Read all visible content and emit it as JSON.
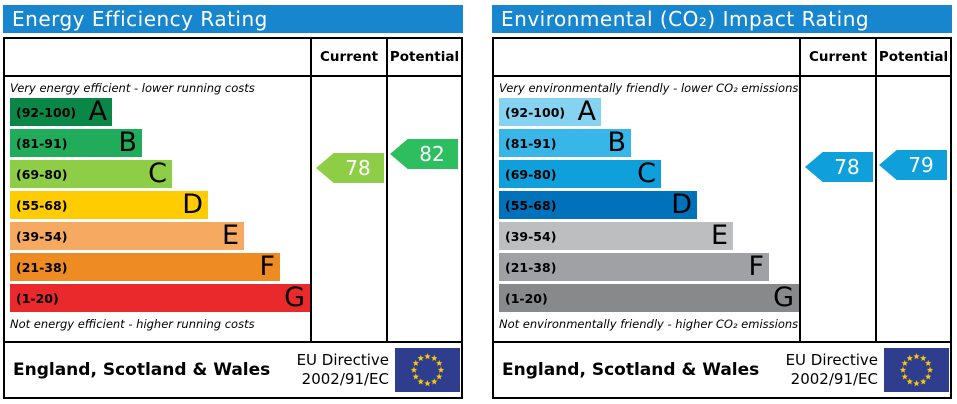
{
  "charts": [
    {
      "title": "Energy Efficiency Rating",
      "header": {
        "current": "Current",
        "potential": "Potential"
      },
      "top_caption": "Very energy efficient - lower running costs",
      "bottom_caption": "Not energy efficient - higher running costs",
      "bands": [
        {
          "label": "(92-100)",
          "letter": "A",
          "color": "#0a8647",
          "width_pct": 34
        },
        {
          "label": "(81-91)",
          "letter": "B",
          "color": "#20ac5b",
          "width_pct": 44
        },
        {
          "label": "(69-80)",
          "letter": "C",
          "color": "#8dce46",
          "width_pct": 54
        },
        {
          "label": "(55-68)",
          "letter": "D",
          "color": "#ffcc00",
          "width_pct": 66
        },
        {
          "label": "(39-54)",
          "letter": "E",
          "color": "#f6a961",
          "width_pct": 78
        },
        {
          "label": "(21-38)",
          "letter": "F",
          "color": "#ee8b22",
          "width_pct": 90
        },
        {
          "label": "(1-20)",
          "letter": "G",
          "color": "#e9292c",
          "width_pct": 100
        }
      ],
      "current": {
        "value": "78",
        "color": "#8dce46"
      },
      "potential": {
        "value": "82",
        "color": "#2dbe60"
      },
      "footer": {
        "region": "England, Scotland & Wales",
        "directive_line1": "EU Directive",
        "directive_line2": "2002/91/EC"
      }
    },
    {
      "title": "Environmental (CO₂) Impact Rating",
      "header": {
        "current": "Current",
        "potential": "Potential"
      },
      "top_caption": "Very environmentally friendly - lower CO₂ emissions",
      "bottom_caption": "Not environmentally friendly - higher CO₂ emissions",
      "bands": [
        {
          "label": "(92-100)",
          "letter": "A",
          "color": "#86d3f1",
          "width_pct": 34
        },
        {
          "label": "(81-91)",
          "letter": "B",
          "color": "#38b6e8",
          "width_pct": 44
        },
        {
          "label": "(69-80)",
          "letter": "C",
          "color": "#0f9fda",
          "width_pct": 54
        },
        {
          "label": "(55-68)",
          "letter": "D",
          "color": "#0072bb",
          "width_pct": 66
        },
        {
          "label": "(39-54)",
          "letter": "E",
          "color": "#bdbebf",
          "width_pct": 78
        },
        {
          "label": "(21-38)",
          "letter": "F",
          "color": "#9fa1a4",
          "width_pct": 90
        },
        {
          "label": "(1-20)",
          "letter": "G",
          "color": "#87898b",
          "width_pct": 100
        }
      ],
      "current": {
        "value": "78",
        "color": "#0f9fda"
      },
      "potential": {
        "value": "79",
        "color": "#0f9fda"
      },
      "footer": {
        "region": "England, Scotland & Wales",
        "directive_line1": "EU Directive",
        "directive_line2": "2002/91/EC"
      }
    }
  ],
  "colors": {
    "header_bg": "#1886cf",
    "eu_flag_bg": "#2f3d8f",
    "eu_star": "#ffcc00"
  },
  "chart_data": [
    {
      "type": "bar",
      "title": "Energy Efficiency Rating",
      "bands": [
        {
          "letter": "A",
          "range": [
            92,
            100
          ]
        },
        {
          "letter": "B",
          "range": [
            81,
            91
          ]
        },
        {
          "letter": "C",
          "range": [
            69,
            80
          ]
        },
        {
          "letter": "D",
          "range": [
            55,
            68
          ]
        },
        {
          "letter": "E",
          "range": [
            39,
            54
          ]
        },
        {
          "letter": "F",
          "range": [
            21,
            38
          ]
        },
        {
          "letter": "G",
          "range": [
            1,
            20
          ]
        }
      ],
      "current": 78,
      "current_band": "C",
      "potential": 82,
      "potential_band": "B",
      "region": "England, Scotland & Wales",
      "directive": "EU Directive 2002/91/EC"
    },
    {
      "type": "bar",
      "title": "Environmental (CO₂) Impact Rating",
      "bands": [
        {
          "letter": "A",
          "range": [
            92,
            100
          ]
        },
        {
          "letter": "B",
          "range": [
            81,
            91
          ]
        },
        {
          "letter": "C",
          "range": [
            69,
            80
          ]
        },
        {
          "letter": "D",
          "range": [
            55,
            68
          ]
        },
        {
          "letter": "E",
          "range": [
            39,
            54
          ]
        },
        {
          "letter": "F",
          "range": [
            21,
            38
          ]
        },
        {
          "letter": "G",
          "range": [
            1,
            20
          ]
        }
      ],
      "current": 78,
      "current_band": "C",
      "potential": 79,
      "potential_band": "C",
      "region": "England, Scotland & Wales",
      "directive": "EU Directive 2002/91/EC"
    }
  ]
}
